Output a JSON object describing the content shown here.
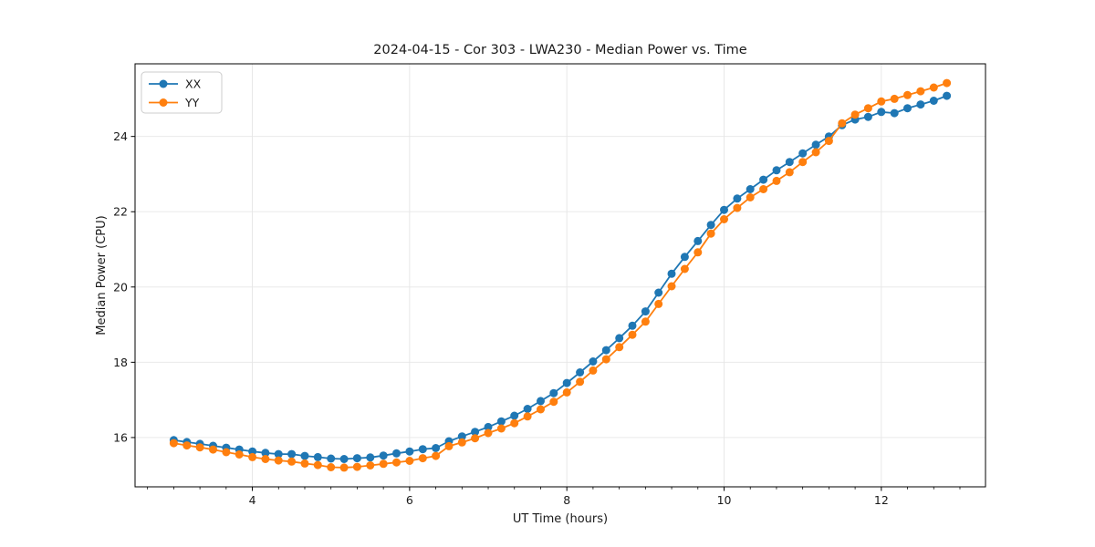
{
  "figure": {
    "title": "2024-04-15 - Cor 303 - LWA230 - Median Power vs. Time",
    "xlabel": "UT Time (hours)",
    "ylabel": "Median Power (CPU)",
    "background_color": "#ffffff"
  },
  "chart_data": {
    "type": "line",
    "title": "2024-04-15 - Cor 303 - LWA230 - Median Power vs. Time",
    "xlabel": "UT Time (hours)",
    "ylabel": "Median Power (CPU)",
    "xlim": [
      2.508,
      13.325
    ],
    "ylim": [
      14.69,
      25.93
    ],
    "xticks": [
      4,
      6,
      8,
      10,
      12
    ],
    "yticks": [
      16,
      18,
      20,
      22,
      24
    ],
    "minor_xtick_step": 0.33333,
    "grid": true,
    "grid_color": "#e6e6e6",
    "axis_color": "#000000",
    "legend_position": "upper-left",
    "marker": "circle",
    "x": [
      3.0,
      3.167,
      3.333,
      3.5,
      3.667,
      3.833,
      4.0,
      4.167,
      4.333,
      4.5,
      4.667,
      4.833,
      5.0,
      5.167,
      5.333,
      5.5,
      5.667,
      5.833,
      6.0,
      6.167,
      6.333,
      6.5,
      6.667,
      6.833,
      7.0,
      7.167,
      7.333,
      7.5,
      7.667,
      7.833,
      8.0,
      8.167,
      8.333,
      8.5,
      8.667,
      8.833,
      9.0,
      9.167,
      9.333,
      9.5,
      9.667,
      9.833,
      10.0,
      10.167,
      10.333,
      10.5,
      10.667,
      10.833,
      11.0,
      11.167,
      11.333,
      11.5,
      11.667,
      11.833,
      12.0,
      12.167,
      12.333,
      12.5,
      12.667,
      12.833
    ],
    "series": [
      {
        "name": "XX",
        "color": "#1f77b4",
        "values": [
          15.93,
          15.88,
          15.83,
          15.78,
          15.73,
          15.68,
          15.63,
          15.59,
          15.56,
          15.56,
          15.51,
          15.48,
          15.44,
          15.43,
          15.45,
          15.47,
          15.52,
          15.58,
          15.63,
          15.69,
          15.72,
          15.9,
          16.03,
          16.15,
          16.28,
          16.43,
          16.58,
          16.76,
          16.97,
          17.18,
          17.45,
          17.73,
          18.02,
          18.32,
          18.64,
          18.97,
          19.35,
          19.85,
          20.35,
          20.8,
          21.22,
          21.65,
          22.05,
          22.35,
          22.6,
          22.85,
          23.1,
          23.32,
          23.55,
          23.78,
          24.0,
          24.3,
          24.45,
          24.52,
          24.65,
          24.62,
          24.75,
          24.85,
          24.95,
          25.08
        ]
      },
      {
        "name": "YY",
        "color": "#ff7f0e",
        "values": [
          15.85,
          15.79,
          15.74,
          15.68,
          15.61,
          15.55,
          15.48,
          15.43,
          15.39,
          15.36,
          15.31,
          15.27,
          15.21,
          15.2,
          15.22,
          15.26,
          15.3,
          15.34,
          15.38,
          15.45,
          15.51,
          15.77,
          15.87,
          15.98,
          16.12,
          16.24,
          16.38,
          16.56,
          16.75,
          16.95,
          17.2,
          17.48,
          17.78,
          18.08,
          18.4,
          18.73,
          19.08,
          19.55,
          20.02,
          20.48,
          20.92,
          21.42,
          21.8,
          22.1,
          22.38,
          22.6,
          22.82,
          23.05,
          23.32,
          23.58,
          23.88,
          24.35,
          24.58,
          24.75,
          24.93,
          25.0,
          25.1,
          25.2,
          25.3,
          25.42
        ]
      }
    ]
  }
}
